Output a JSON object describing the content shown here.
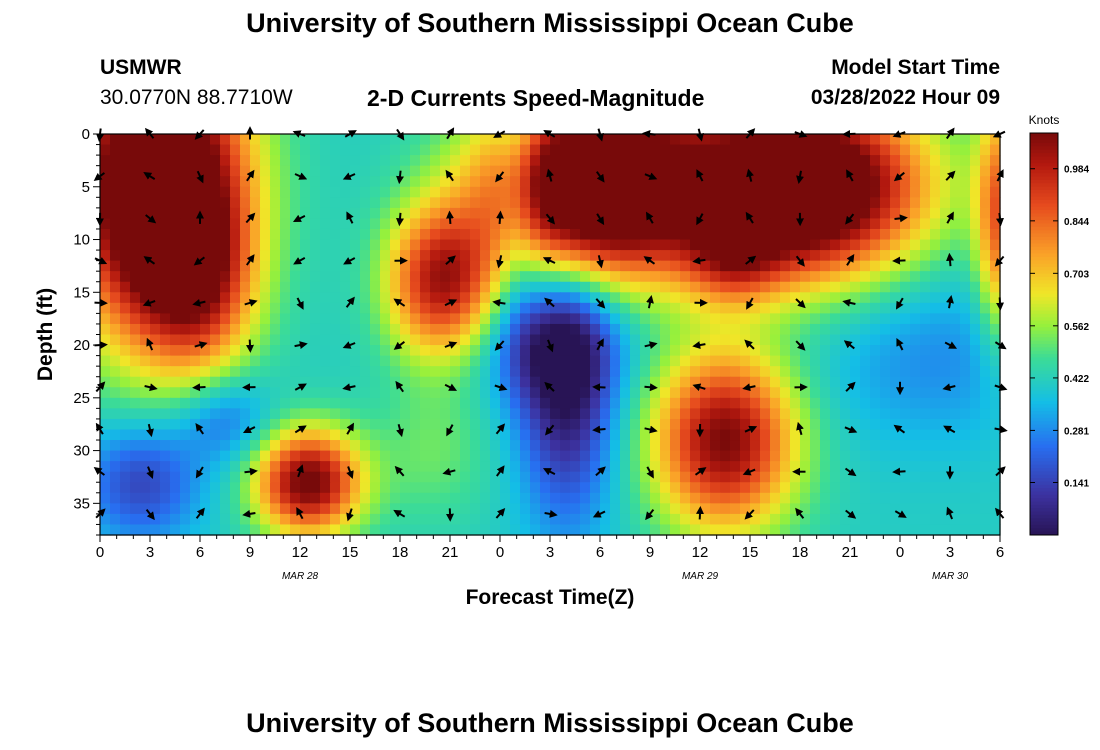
{
  "page": {
    "title": "University of Southern Mississippi Ocean Cube",
    "station_id": "USMWR",
    "station_coords": "30.0770N  88.7710W",
    "plot_subtitle": "2-D Currents Speed-Magnitude",
    "model_start_label": "Model Start Time",
    "model_start_value": "03/28/2022 Hour 09",
    "footer_title": "University of Southern Mississippi Ocean Cube"
  },
  "chart_data": {
    "type": "heatmap",
    "title": "2-D Currents Speed-Magnitude",
    "xlabel": "Forecast Time(Z)",
    "ylabel": "Depth (ft)",
    "x_tick_labels": [
      "0",
      "3",
      "6",
      "9",
      "12",
      "15",
      "18",
      "21",
      "0",
      "3",
      "6",
      "9",
      "12",
      "15",
      "18",
      "21",
      "0",
      "3",
      "6"
    ],
    "x_hours": [
      0,
      3,
      6,
      9,
      12,
      15,
      18,
      21,
      24,
      27,
      30,
      33,
      36,
      39,
      42,
      45,
      48,
      51,
      54
    ],
    "xlim": [
      0,
      54
    ],
    "y_tick_labels": [
      "0",
      "5",
      "10",
      "15",
      "20",
      "25",
      "30",
      "35"
    ],
    "y_ticks": [
      0,
      5,
      10,
      15,
      20,
      25,
      30,
      35
    ],
    "ylim": [
      0,
      38
    ],
    "date_labels": [
      {
        "text": "MAR 28",
        "hour": 12
      },
      {
        "text": "MAR 29",
        "hour": 36
      },
      {
        "text": "MAR 30",
        "hour": 51
      }
    ],
    "colorbar": {
      "unit": "Knots",
      "tick_labels": [
        "0.984",
        "0.844",
        "0.703",
        "0.562",
        "0.422",
        "0.281",
        "0.141"
      ],
      "ticks": [
        0.984,
        0.844,
        0.703,
        0.562,
        0.422,
        0.281,
        0.141
      ],
      "range": [
        0.0,
        1.08
      ]
    },
    "arrow_depths": [
      0,
      4,
      8,
      12,
      16,
      20,
      24,
      28,
      32,
      36
    ],
    "speed_blobs": [
      {
        "hour": 3.5,
        "depth": 5,
        "sx": 3.6,
        "sy": 10,
        "amp": 0.95
      },
      {
        "hour": 6,
        "depth": 14,
        "sx": 2.2,
        "sy": 6,
        "amp": 0.3
      },
      {
        "hour": 29.5,
        "depth": 5,
        "sx": 4.5,
        "sy": 6,
        "amp": 0.92
      },
      {
        "hour": 42,
        "depth": 5,
        "sx": 5,
        "sy": 6,
        "amp": 0.92
      },
      {
        "hour": 38,
        "depth": 12,
        "sx": 2,
        "sy": 3,
        "amp": 0.25
      },
      {
        "hour": 20.5,
        "depth": 14,
        "sx": 2.3,
        "sy": 5,
        "amp": 0.55
      },
      {
        "hour": 37.5,
        "depth": 29,
        "sx": 3,
        "sy": 6,
        "amp": 0.62
      },
      {
        "hour": 12.5,
        "depth": 33,
        "sx": 2.2,
        "sy": 3.5,
        "amp": 0.65
      },
      {
        "hour": 54,
        "depth": 8,
        "sx": 1,
        "sy": 8,
        "amp": 0.4
      },
      {
        "hour": 20,
        "depth": 30,
        "sx": 2.5,
        "sy": 5,
        "amp": 0.1
      },
      {
        "hour": 28,
        "depth": 24,
        "sx": 2,
        "sy": 9,
        "amp": -0.35
      },
      {
        "hour": 2.5,
        "depth": 33,
        "sx": 2.5,
        "sy": 4,
        "amp": -0.25
      },
      {
        "hour": 7.5,
        "depth": 27,
        "sx": 2,
        "sy": 3,
        "amp": -0.18
      },
      {
        "hour": 27,
        "depth": 20,
        "sx": 3,
        "sy": 4,
        "amp": -0.2
      },
      {
        "hour": 50,
        "depth": 21,
        "sx": 5,
        "sy": 6,
        "amp": -0.12
      },
      {
        "hour": 25,
        "depth": 4,
        "sx": 1,
        "sy": 10,
        "amp": -0.15
      }
    ]
  }
}
